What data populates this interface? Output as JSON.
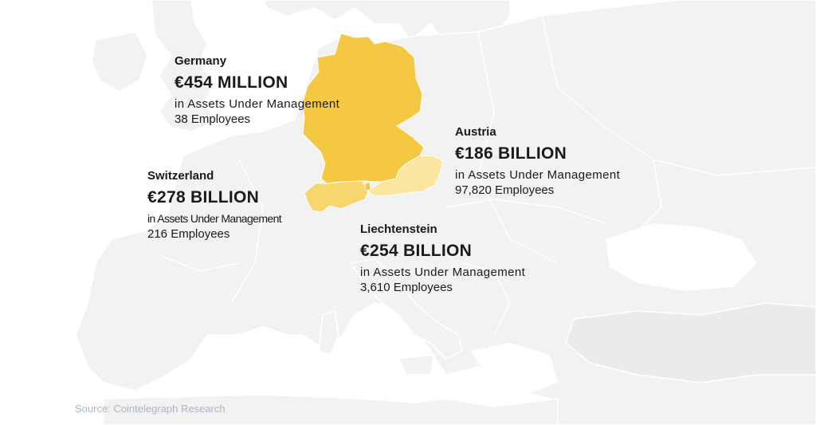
{
  "regions": {
    "germany": {
      "country": "Germany",
      "amount": "€454 MILLION",
      "description": "in Assets Under Management",
      "employees": "38 Employees",
      "color": "#f5c842"
    },
    "austria": {
      "country": "Austria",
      "amount": "€186 BILLION",
      "description": "in Assets Under Management",
      "employees": "97,820 Employees",
      "color": "#fbe6a0"
    },
    "switzerland": {
      "country": "Switzerland",
      "amount": "€278 BILLION",
      "description": "in Assets Under Management",
      "employees": "216 Employees",
      "color": "#f8d66e"
    },
    "liechtenstein": {
      "country": "Liechtenstein",
      "amount": "€254 BILLION",
      "description": "in Assets Under Management",
      "employees": "3,610 Employees",
      "color": "#f5c842"
    }
  },
  "source": "Source: Cointelegraph Research",
  "base_map_color": "#f2f2f2"
}
